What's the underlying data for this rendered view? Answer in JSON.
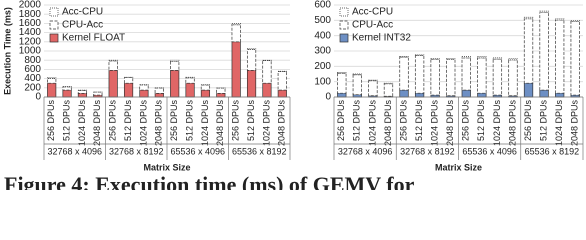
{
  "chart_data": [
    {
      "type": "bar",
      "stacked": true,
      "y_label": "Execution Time (ms)",
      "x_label": "Matrix Size",
      "groups": [
        "32768 x 4096",
        "32768 x 8192",
        "65536 x 4096",
        "65536 x 8192"
      ],
      "categories": [
        "256 DPUs",
        "512 DPUs",
        "1024 DPUs",
        "2048 DPUs",
        "256 DPUs",
        "512 DPUs",
        "1024 DPUs",
        "2048 DPUs",
        "256 DPUs",
        "512 DPUs",
        "1024 DPUs",
        "2048 DPUs",
        "256 DPUs",
        "512 DPUs",
        "1024 DPUs",
        "2048 DPUs"
      ],
      "series": [
        {
          "name": "Kernel FLOAT",
          "color": "#e06666",
          "border": "solid",
          "values": [
            300,
            150,
            80,
            40,
            580,
            300,
            150,
            80,
            580,
            300,
            150,
            80,
            1200,
            580,
            300,
            150
          ]
        },
        {
          "name": "CPU-Acc",
          "color": "#ffffff",
          "border": "dashed",
          "values": [
            105,
            70,
            62,
            65,
            205,
            120,
            112,
            115,
            190,
            115,
            110,
            112,
            370,
            455,
            490,
            402
          ]
        },
        {
          "name": "Acc-CPU",
          "color": "#ffffff",
          "border": "dotted",
          "values": [
            15,
            10,
            8,
            5,
            15,
            10,
            8,
            5,
            30,
            15,
            10,
            8,
            30,
            15,
            10,
            8
          ]
        }
      ],
      "ylim": [
        0,
        2000
      ],
      "yticks": [
        0,
        200,
        400,
        600,
        800,
        1000,
        1200,
        1400,
        1600,
        1800,
        2000
      ],
      "grid": true,
      "legend": "top-left"
    },
    {
      "type": "bar",
      "stacked": true,
      "x_label": "Matrix Size",
      "groups": [
        "32768 x 4096",
        "32768 x 8192",
        "65536 x 4096",
        "65536 x 8192"
      ],
      "categories": [
        "256 DPUs",
        "512 DPUs",
        "1024 DPUs",
        "2048 DPUs",
        "256 DPUs",
        "512 DPUs",
        "1024 DPUs",
        "2048 DPUs",
        "256 DPUs",
        "512 DPUs",
        "1024 DPUs",
        "2048 DPUs",
        "256 DPUs",
        "512 DPUs",
        "1024 DPUs",
        "2048 DPUs"
      ],
      "series": [
        {
          "name": "Kernel INT32",
          "color": "#6d8fc4",
          "border": "solid",
          "values": [
            25,
            15,
            8,
            5,
            45,
            25,
            12,
            8,
            45,
            25,
            12,
            8,
            90,
            45,
            25,
            12
          ]
        },
        {
          "name": "CPU-Acc",
          "color": "#ffffff",
          "border": "dashed",
          "values": [
            130,
            130,
            98,
            81,
            215,
            245,
            234,
            238,
            210,
            230,
            235,
            234,
            420,
            505,
            477,
            480
          ]
        },
        {
          "name": "Acc-CPU",
          "color": "#ffffff",
          "border": "dotted",
          "values": [
            5,
            5,
            4,
            4,
            5,
            5,
            4,
            4,
            10,
            10,
            8,
            8,
            10,
            10,
            8,
            8
          ]
        }
      ],
      "ylim": [
        0,
        600
      ],
      "yticks": [
        0,
        100,
        200,
        300,
        400,
        500,
        600
      ],
      "grid": true,
      "legend": "top-left"
    }
  ],
  "caption": "Figure 4: Execution time (ms) of GEMV for"
}
